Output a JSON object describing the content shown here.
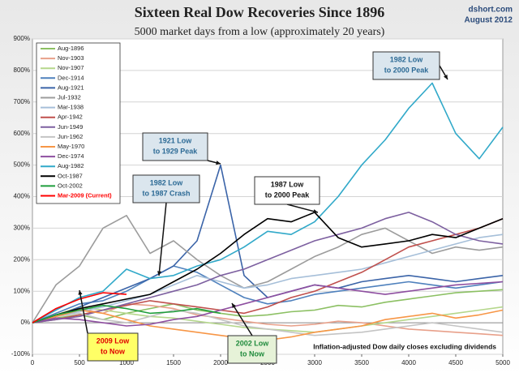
{
  "chart_data": {
    "type": "line",
    "title": "Sixteen Real Dow Recoveries Since 1896",
    "subtitle": "5000 market days from a low (approximately 20 years)",
    "source": "dshort.com",
    "date": "August 2012",
    "note": "Inflation-adjusted Dow daily closes excluding dividends",
    "annotations": [
      [
        "1982 Low",
        "to 2000 Peak"
      ],
      [
        "1921 Low",
        "to 1929 Peak"
      ],
      [
        "1982 Low",
        "to 1987 Crash"
      ],
      [
        "1987 Low",
        "to 2000 Peak"
      ],
      [
        "2009 Low",
        "to Now"
      ],
      [
        "2002 Low",
        "to Now"
      ]
    ],
    "x": [
      0,
      250,
      500,
      750,
      1000,
      1250,
      1500,
      1750,
      2000,
      2250,
      2500,
      2750,
      3000,
      3250,
      3500,
      3750,
      4000,
      4250,
      4500,
      4750,
      5000
    ],
    "xlim": [
      0,
      5000
    ],
    "xticks": [
      0,
      500,
      1000,
      1500,
      2000,
      2500,
      3000,
      3500,
      4000,
      4500,
      5000
    ],
    "ylim": [
      -100,
      900
    ],
    "yticks": [
      {
        "value": -100,
        "label": "-100%"
      },
      {
        "value": 0,
        "label": "0%"
      },
      {
        "value": 100,
        "label": "100%"
      },
      {
        "value": 200,
        "label": "200%"
      },
      {
        "value": 300,
        "label": "300%"
      },
      {
        "value": 400,
        "label": "400%"
      },
      {
        "value": 500,
        "label": "500%"
      },
      {
        "value": 600,
        "label": "600%"
      },
      {
        "value": 700,
        "label": "700%"
      },
      {
        "value": 800,
        "label": "800%"
      },
      {
        "value": 900,
        "label": "900%"
      }
    ],
    "grid": true,
    "legend": "upper left",
    "series": [
      {
        "name": "Aug-1896",
        "color": "#8cc063",
        "values": [
          0,
          15,
          25,
          10,
          30,
          45,
          60,
          40,
          30,
          20,
          25,
          35,
          40,
          55,
          50,
          65,
          75,
          85,
          95,
          100,
          105
        ]
      },
      {
        "name": "Nov-1903",
        "color": "#e8a08a",
        "values": [
          0,
          20,
          45,
          30,
          60,
          55,
          45,
          25,
          15,
          5,
          -5,
          -10,
          -5,
          5,
          0,
          -10,
          -20,
          -25,
          -30,
          -35,
          -40
        ]
      },
      {
        "name": "Nov-1907",
        "color": "#b5d78c",
        "values": [
          0,
          25,
          50,
          40,
          30,
          20,
          15,
          5,
          -5,
          -15,
          -20,
          -25,
          -30,
          -20,
          -10,
          0,
          10,
          20,
          30,
          40,
          50
        ]
      },
      {
        "name": "Dec-1914",
        "color": "#4f81bd",
        "values": [
          0,
          30,
          60,
          70,
          100,
          140,
          180,
          160,
          120,
          80,
          60,
          70,
          90,
          100,
          110,
          120,
          130,
          120,
          110,
          120,
          130
        ]
      },
      {
        "name": "Aug-1921",
        "color": "#3b64a8",
        "values": [
          0,
          20,
          50,
          80,
          110,
          140,
          180,
          260,
          500,
          150,
          80,
          100,
          120,
          110,
          130,
          140,
          150,
          140,
          130,
          140,
          150
        ]
      },
      {
        "name": "Jul-1932",
        "color": "#9c9c9c",
        "values": [
          0,
          120,
          180,
          300,
          340,
          220,
          260,
          200,
          150,
          110,
          130,
          170,
          210,
          240,
          280,
          300,
          260,
          220,
          240,
          230,
          240
        ]
      },
      {
        "name": "Mar-1938",
        "color": "#a6bfd9",
        "values": [
          0,
          20,
          35,
          50,
          70,
          90,
          120,
          150,
          130,
          110,
          120,
          140,
          150,
          160,
          170,
          190,
          210,
          230,
          250,
          270,
          280
        ]
      },
      {
        "name": "Apr-1942",
        "color": "#c0504d",
        "values": [
          0,
          10,
          25,
          40,
          55,
          70,
          60,
          50,
          40,
          30,
          50,
          80,
          100,
          130,
          160,
          200,
          240,
          260,
          280,
          300,
          330
        ]
      },
      {
        "name": "Jun-1949",
        "color": "#7d60a0",
        "values": [
          0,
          10,
          20,
          40,
          60,
          80,
          100,
          120,
          150,
          170,
          200,
          230,
          260,
          280,
          300,
          330,
          350,
          320,
          280,
          260,
          250
        ]
      },
      {
        "name": "Jun-1962",
        "color": "#c4c4c4",
        "values": [
          0,
          20,
          30,
          10,
          0,
          20,
          40,
          30,
          10,
          -10,
          -20,
          -30,
          -40,
          -35,
          -30,
          -20,
          -10,
          0,
          -10,
          -20,
          -30
        ]
      },
      {
        "name": "May-1970",
        "color": "#f79646",
        "values": [
          0,
          20,
          40,
          30,
          10,
          -10,
          -20,
          -30,
          -40,
          -50,
          -55,
          -45,
          -30,
          -20,
          -10,
          10,
          20,
          30,
          15,
          25,
          40
        ]
      },
      {
        "name": "Dec-1974",
        "color": "#8e4fa0",
        "values": [
          0,
          15,
          10,
          0,
          -10,
          -5,
          10,
          20,
          40,
          60,
          80,
          100,
          120,
          110,
          100,
          90,
          100,
          110,
          120,
          125,
          130
        ]
      },
      {
        "name": "Aug-1982",
        "color": "#31a9c9",
        "values": [
          0,
          40,
          80,
          100,
          170,
          140,
          150,
          180,
          200,
          240,
          290,
          280,
          320,
          400,
          500,
          580,
          680,
          760,
          600,
          520,
          620
        ]
      },
      {
        "name": "Oct-1987",
        "color": "#000000",
        "values": [
          0,
          25,
          45,
          60,
          75,
          90,
          130,
          170,
          220,
          280,
          330,
          320,
          350,
          270,
          240,
          250,
          260,
          280,
          270,
          300,
          330
        ]
      },
      {
        "name": "Oct-2002",
        "color": "#1f9e3c",
        "values": [
          0,
          25,
          40,
          55,
          45,
          30,
          35,
          45,
          30,
          null,
          null,
          null,
          null,
          null,
          null,
          null,
          null,
          null,
          null,
          null,
          null
        ]
      },
      {
        "name": "Mar-2009 (Current)",
        "color": "#ff0000",
        "values": [
          0,
          45,
          75,
          95,
          90,
          null,
          null,
          null,
          null,
          null,
          null,
          null,
          null,
          null,
          null,
          null,
          null,
          null,
          null,
          null,
          null
        ]
      }
    ]
  }
}
